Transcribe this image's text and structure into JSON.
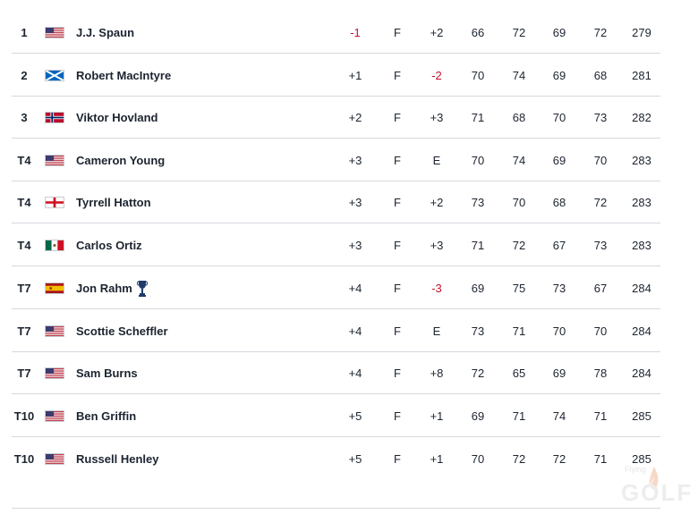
{
  "leaderboard": {
    "rows": [
      {
        "pos": "1",
        "flag": "USA",
        "name": "J.J. Spaun",
        "to_par": "-1",
        "to_par_red": true,
        "thru": "F",
        "today": "+2",
        "today_red": false,
        "r1": "66",
        "r2": "72",
        "r3": "69",
        "r4": "72",
        "total": "279",
        "trophy": false
      },
      {
        "pos": "2",
        "flag": "SCO",
        "name": "Robert MacIntyre",
        "to_par": "+1",
        "to_par_red": false,
        "thru": "F",
        "today": "-2",
        "today_red": true,
        "r1": "70",
        "r2": "74",
        "r3": "69",
        "r4": "68",
        "total": "281",
        "trophy": false
      },
      {
        "pos": "3",
        "flag": "NOR",
        "name": "Viktor Hovland",
        "to_par": "+2",
        "to_par_red": false,
        "thru": "F",
        "today": "+3",
        "today_red": false,
        "r1": "71",
        "r2": "68",
        "r3": "70",
        "r4": "73",
        "total": "282",
        "trophy": false
      },
      {
        "pos": "T4",
        "flag": "USA",
        "name": "Cameron Young",
        "to_par": "+3",
        "to_par_red": false,
        "thru": "F",
        "today": "E",
        "today_red": false,
        "r1": "70",
        "r2": "74",
        "r3": "69",
        "r4": "70",
        "total": "283",
        "trophy": false
      },
      {
        "pos": "T4",
        "flag": "ENG",
        "name": "Tyrrell Hatton",
        "to_par": "+3",
        "to_par_red": false,
        "thru": "F",
        "today": "+2",
        "today_red": false,
        "r1": "73",
        "r2": "70",
        "r3": "68",
        "r4": "72",
        "total": "283",
        "trophy": false
      },
      {
        "pos": "T4",
        "flag": "MEX",
        "name": "Carlos Ortiz",
        "to_par": "+3",
        "to_par_red": false,
        "thru": "F",
        "today": "+3",
        "today_red": false,
        "r1": "71",
        "r2": "72",
        "r3": "67",
        "r4": "73",
        "total": "283",
        "trophy": false
      },
      {
        "pos": "T7",
        "flag": "ESP",
        "name": "Jon Rahm",
        "to_par": "+4",
        "to_par_red": false,
        "thru": "F",
        "today": "-3",
        "today_red": true,
        "r1": "69",
        "r2": "75",
        "r3": "73",
        "r4": "67",
        "total": "284",
        "trophy": true
      },
      {
        "pos": "T7",
        "flag": "USA",
        "name": "Scottie Scheffler",
        "to_par": "+4",
        "to_par_red": false,
        "thru": "F",
        "today": "E",
        "today_red": false,
        "r1": "73",
        "r2": "71",
        "r3": "70",
        "r4": "70",
        "total": "284",
        "trophy": false
      },
      {
        "pos": "T7",
        "flag": "USA",
        "name": "Sam Burns",
        "to_par": "+4",
        "to_par_red": false,
        "thru": "F",
        "today": "+8",
        "today_red": false,
        "r1": "72",
        "r2": "65",
        "r3": "69",
        "r4": "78",
        "total": "284",
        "trophy": false
      },
      {
        "pos": "T10",
        "flag": "USA",
        "name": "Ben Griffin",
        "to_par": "+5",
        "to_par_red": false,
        "thru": "F",
        "today": "+1",
        "today_red": false,
        "r1": "69",
        "r2": "71",
        "r3": "74",
        "r4": "71",
        "total": "285",
        "trophy": false
      },
      {
        "pos": "T10",
        "flag": "USA",
        "name": "Russell Henley",
        "to_par": "+5",
        "to_par_red": false,
        "thru": "F",
        "today": "+1",
        "today_red": false,
        "r1": "70",
        "r2": "72",
        "r3": "72",
        "r4": "71",
        "total": "285",
        "trophy": false
      }
    ]
  },
  "colors": {
    "text": "#1c2430",
    "negative": "#c8102e",
    "divider": "#d6d9de"
  },
  "watermark": {
    "top": "Flying",
    "main": "GOLF"
  }
}
